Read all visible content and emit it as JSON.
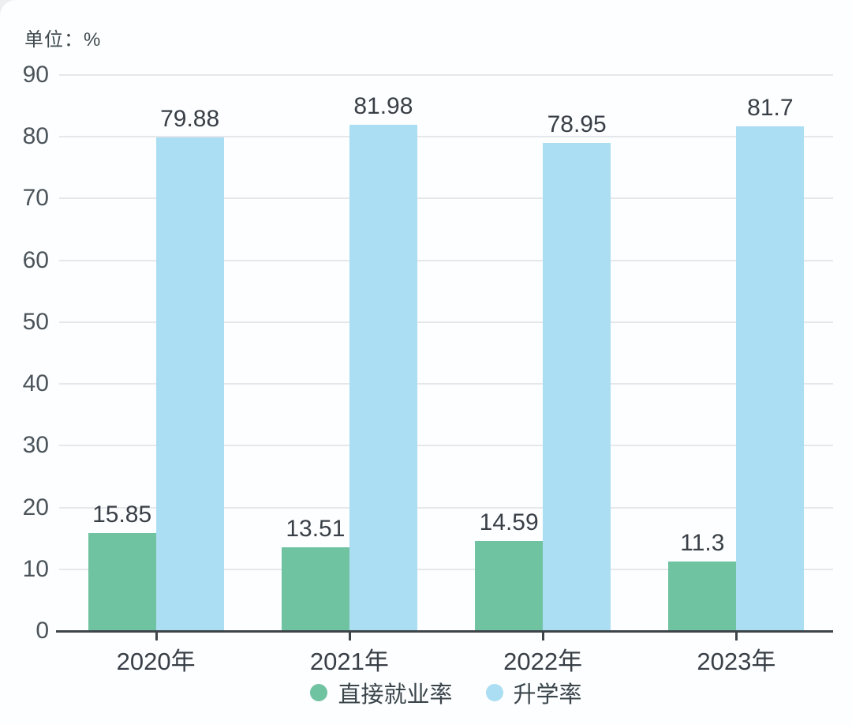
{
  "unit_label": "单位：%",
  "chart_data": {
    "type": "bar",
    "title": "",
    "unit_label": "单位：%",
    "categories": [
      "2020年",
      "2021年",
      "2022年",
      "2023年"
    ],
    "series": [
      {
        "name": "直接就业率",
        "color": "#70c3a1",
        "values": [
          15.85,
          13.51,
          14.59,
          11.3
        ]
      },
      {
        "name": "升学率",
        "color": "#abdef2",
        "values": [
          79.88,
          81.98,
          78.95,
          81.7
        ]
      }
    ],
    "y_ticks": [
      0,
      10,
      20,
      30,
      40,
      50,
      60,
      70,
      80,
      90
    ],
    "ylim": [
      0,
      90
    ],
    "grid": true,
    "legend_position": "bottom",
    "colors": {
      "grid_line": "#e5e8ea",
      "axis_line": "#3d444a",
      "y_tick_label": "#4b545a",
      "value_label": "#383f46",
      "category_label": "#383f46",
      "background": "#fdfeff"
    }
  }
}
